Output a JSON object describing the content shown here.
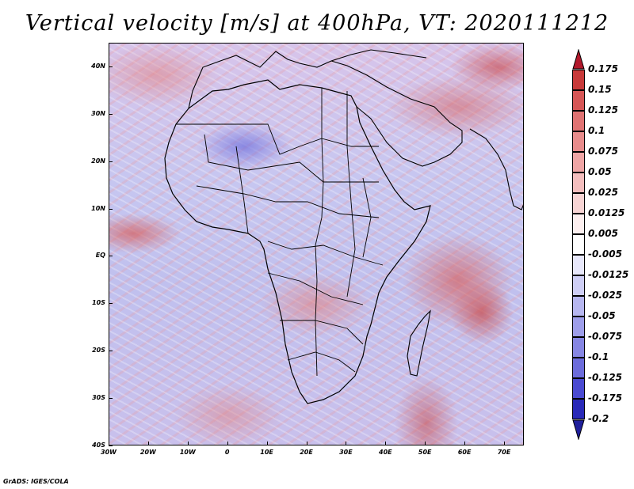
{
  "title": "Vertical velocity [m/s] at 400hPa, VT: 2020111212",
  "footer": "GrADS: IGES/COLA",
  "map_extent": {
    "lon": [
      -30,
      75
    ],
    "lat": [
      -40,
      45
    ]
  },
  "y_axis": {
    "labels": [
      "40N",
      "30N",
      "20N",
      "10N",
      "EQ",
      "10S",
      "20S",
      "30S",
      "40S"
    ],
    "lats": [
      40,
      30,
      20,
      10,
      0,
      -10,
      -20,
      -30,
      -40
    ]
  },
  "x_axis": {
    "labels": [
      "30W",
      "20W",
      "10W",
      "0",
      "10E",
      "20E",
      "30E",
      "40E",
      "50E",
      "60E",
      "70E"
    ],
    "lons": [
      -30,
      -20,
      -10,
      0,
      10,
      20,
      30,
      40,
      50,
      60,
      70
    ]
  },
  "colorbar": {
    "levels": [
      "0.175",
      "0.15",
      "0.125",
      "0.1",
      "0.075",
      "0.05",
      "0.025",
      "0.0125",
      "0.005",
      "-0.005",
      "-0.0125",
      "-0.025",
      "-0.05",
      "-0.075",
      "-0.1",
      "-0.125",
      "-0.175",
      "-0.2"
    ],
    "colors": [
      "#b2182b",
      "#c83a3a",
      "#d65656",
      "#e07373",
      "#e88c8c",
      "#efa5a5",
      "#f4bebe",
      "#f8d5d5",
      "#fdf0f0",
      "#ffffff",
      "#e8e8fb",
      "#cfcff6",
      "#b7b7f0",
      "#9e9eea",
      "#8686e3",
      "#6c6cdb",
      "#4a4ad1",
      "#2a2ab8",
      "#1f1f9c"
    ],
    "top_arrow_color": "#b2182b",
    "bottom_arrow_color": "#1f1f9c"
  }
}
